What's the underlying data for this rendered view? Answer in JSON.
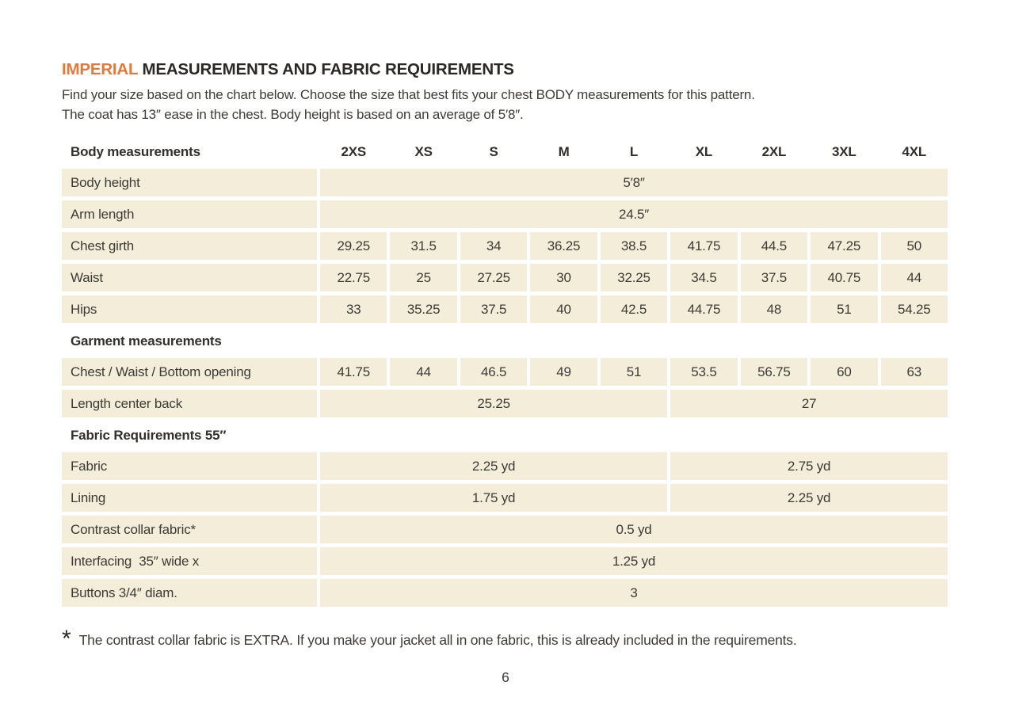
{
  "page": {
    "title_highlight": "IMPERIAL",
    "title_rest": " MEASUREMENTS AND FABRIC REQUIREMENTS",
    "intro_line1": "Find your size based on the chart below. Choose the size that best fits your chest BODY measurements for this pattern.",
    "intro_line2": "The coat has 13″ ease in the chest. Body height is based on an average of 5′8″.",
    "footnote_marker": "*",
    "footnote_text": "The contrast collar fabric is EXTRA. If you make your jacket all in one fabric, this is already included in the requirements.",
    "page_number": "6"
  },
  "colors": {
    "accent": "#e0793c",
    "cell_background": "#f4edda",
    "heading_text": "#2b2826",
    "body_text": "#3f3b38"
  },
  "table": {
    "corner_label": "Body measurements",
    "sizes": [
      "2XS",
      "XS",
      "S",
      "M",
      "L",
      "XL",
      "2XL",
      "3XL",
      "4XL"
    ],
    "rows": [
      {
        "type": "full",
        "label": "Body height",
        "value": "5′8″"
      },
      {
        "type": "full",
        "label": "Arm length",
        "value": "24.5″"
      },
      {
        "type": "cells",
        "label": "Chest girth",
        "values": [
          "29.25",
          "31.5",
          "34",
          "36.25",
          "38.5",
          "41.75",
          "44.5",
          "47.25",
          "50"
        ]
      },
      {
        "type": "cells",
        "label": "Waist",
        "values": [
          "22.75",
          "25",
          "27.25",
          "30",
          "32.25",
          "34.5",
          "37.5",
          "40.75",
          "44"
        ]
      },
      {
        "type": "cells",
        "label": "Hips",
        "values": [
          "33",
          "35.25",
          "37.5",
          "40",
          "42.5",
          "44.75",
          "48",
          "51",
          "54.25"
        ]
      },
      {
        "type": "section",
        "label": "Garment measurements"
      },
      {
        "type": "cells",
        "label": "Chest / Waist / Bottom opening",
        "values": [
          "41.75",
          "44",
          "46.5",
          "49",
          "51",
          "53.5",
          "56.75",
          "60",
          "63"
        ]
      },
      {
        "type": "split",
        "label": "Length center back",
        "left": "25.25",
        "right": "27"
      },
      {
        "type": "section",
        "label": "Fabric Requirements 55″"
      },
      {
        "type": "split",
        "label": "Fabric",
        "left": "2.25 yd",
        "right": "2.75 yd"
      },
      {
        "type": "split",
        "label": "Lining",
        "left": "1.75 yd",
        "right": "2.25 yd"
      },
      {
        "type": "full",
        "label": "Contrast collar fabric*",
        "value": "0.5 yd"
      },
      {
        "type": "full",
        "label": "Interfacing  35″ wide x",
        "value": "1.25 yd"
      },
      {
        "type": "full",
        "label": "Buttons 3/4″ diam.",
        "value": "3"
      }
    ]
  }
}
